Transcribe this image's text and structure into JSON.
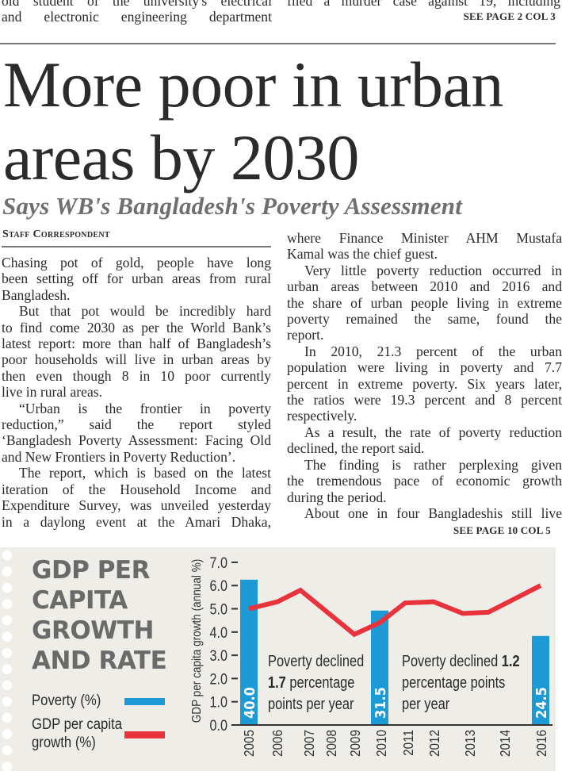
{
  "prev_story": {
    "left_lines": [
      "old student of the university's electrical",
      "and electronic engineering department"
    ],
    "right_lines": [
      "filed a murder case against 19, including"
    ],
    "right_jump": "SEE PAGE 2 COL 3"
  },
  "article": {
    "headline_lines": [
      "More poor in urban",
      "areas by 2030"
    ],
    "subhead": "Says WB's Bangladesh's Poverty Assessment",
    "byline": "Staff Correspondent",
    "left_column": [
      {
        "indent": false,
        "ends": true,
        "lines": [
          "Chasing pot of gold, people have long",
          "been setting off for urban areas from rural",
          "Bangladesh."
        ]
      },
      {
        "indent": true,
        "ends": true,
        "lines": [
          "But that pot would be incredibly hard",
          "to find come 2030 as per the World Bank’s",
          "latest report: more than half of Bangladesh’s",
          "poor households will live in urban areas by",
          "then even though 8 in 10 poor currently",
          "live in rural areas."
        ]
      },
      {
        "indent": true,
        "ends": true,
        "lines": [
          "“Urban is the frontier in poverty",
          "reduction,” said the report styled",
          "‘Bangladesh Poverty Assessment: Facing Old",
          "and New Frontiers in Poverty Reduction’."
        ]
      },
      {
        "indent": true,
        "ends": false,
        "lines": [
          "The report, which is based on the latest",
          "iteration of the Household Income and",
          "Expenditure Survey, was unveiled yesterday",
          "in a daylong event at the Amari Dhaka,"
        ]
      }
    ],
    "right_column": [
      {
        "indent": false,
        "ends": true,
        "lines": [
          "where Finance Minister AHM Mustafa",
          "Kamal was the chief guest."
        ]
      },
      {
        "indent": true,
        "ends": true,
        "lines": [
          "Very little poverty reduction occurred in",
          "urban areas between 2010 and 2016 and",
          "the share of urban people living in extreme",
          "poverty remained the same, found the",
          "report."
        ]
      },
      {
        "indent": true,
        "ends": true,
        "lines": [
          "In 2010, 21.3 percent of the urban",
          "population were living in poverty and 7.7",
          "percent in extreme poverty. Six years later,",
          "the ratios were 19.3 percent and 8 percent",
          "respectively."
        ]
      },
      {
        "indent": true,
        "ends": true,
        "lines": [
          "As a result, the rate of poverty reduction",
          "declined, the report said."
        ]
      },
      {
        "indent": true,
        "ends": true,
        "lines": [
          "The finding is rather perplexing given",
          "the tremendous pace of economic growth",
          "during the period."
        ]
      },
      {
        "indent": true,
        "ends": false,
        "lines": [
          "About one in four Bangladeshis still live"
        ]
      }
    ],
    "jump": "SEE PAGE 10 COL 5"
  },
  "chart_data": {
    "type": "bar+line",
    "title_lines": [
      "GDP PER",
      "CAPITA",
      "GROWTH",
      "AND RATE"
    ],
    "ylabel": "GDP per capita growth (annual %)",
    "ylim": [
      0,
      7
    ],
    "yticks": [
      "0.0",
      "1.0",
      "2.0",
      "3.0",
      "4.0",
      "5.0",
      "6.0",
      "7.0"
    ],
    "xticks": [
      "2005",
      "2006",
      "2007",
      "2008",
      "2009",
      "2010",
      "2011",
      "2012",
      "2013",
      "2014",
      "2016"
    ],
    "grid": false,
    "legend_placement": "left",
    "series": [
      {
        "name": "Poverty (%)",
        "kind": "bar",
        "color": "#1b9ad6",
        "x": [
          "2005",
          "2010",
          "2016"
        ],
        "values": [
          40.0,
          31.5,
          24.5
        ],
        "labels": [
          "40.0",
          "31.5",
          "24.5"
        ]
      },
      {
        "name": "GDP per capita growth (%)",
        "kind": "line",
        "color": "#e8333d",
        "x": [
          "2005",
          "2006",
          "2007",
          "2009",
          "2010",
          "2011",
          "2012",
          "2013",
          "2014",
          "2016"
        ],
        "values": [
          5.0,
          5.3,
          5.8,
          3.9,
          4.4,
          5.25,
          5.3,
          4.8,
          4.85,
          6.0
        ]
      }
    ],
    "legend": [
      {
        "label_lines": [
          "Poverty (%)"
        ],
        "color": "#1b9ad6"
      },
      {
        "label_lines": [
          "GDP per capita",
          "growth (%)"
        ],
        "color": "#e8333d"
      }
    ],
    "annotations": [
      {
        "lines": [
          [
            "Poverty declined",
            ""
          ],
          [
            "1.7",
            " percentage"
          ],
          [
            "points per year",
            ""
          ]
        ]
      },
      {
        "lines": [
          [
            "Poverty declined ",
            "1.2"
          ],
          [
            "percentage points",
            ""
          ],
          [
            "per year",
            ""
          ]
        ]
      }
    ]
  }
}
